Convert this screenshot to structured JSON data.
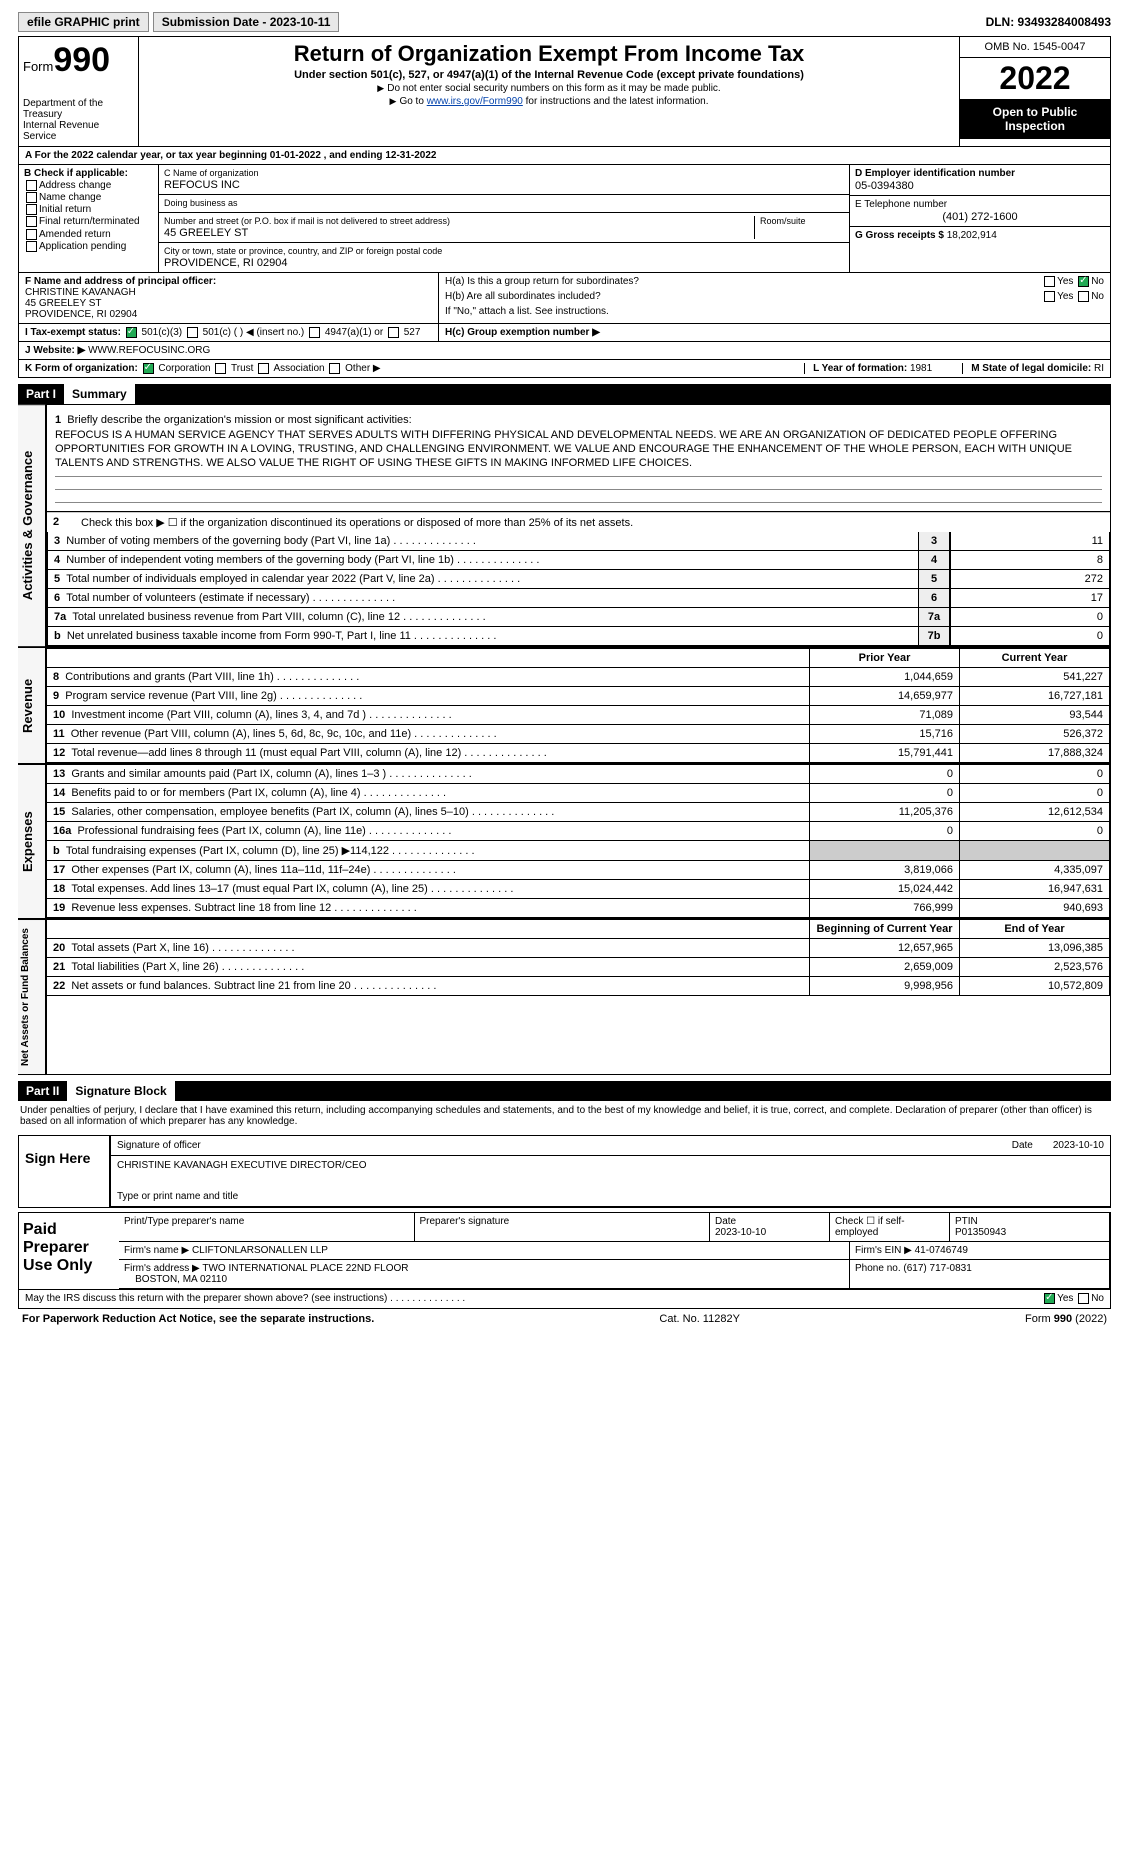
{
  "topbar": {
    "efile": "efile GRAPHIC print",
    "submission": "Submission Date - 2023-10-11",
    "dln": "DLN: 93493284008493"
  },
  "header": {
    "form": "Form",
    "num": "990",
    "dept": "Department of the Treasury",
    "irs": "Internal Revenue Service",
    "title": "Return of Organization Exempt From Income Tax",
    "sub": "Under section 501(c), 527, or 4947(a)(1) of the Internal Revenue Code (except private foundations)",
    "instr1": "Do not enter social security numbers on this form as it may be made public.",
    "instr2_pre": "Go to ",
    "instr2_link": "www.irs.gov/Form990",
    "instr2_post": " for instructions and the latest information.",
    "omb": "OMB No. 1545-0047",
    "year": "2022",
    "open": "Open to Public Inspection"
  },
  "rowA": "A For the 2022 calendar year, or tax year beginning 01-01-2022    , and ending 12-31-2022",
  "boxB": {
    "hdr": "B Check if applicable:",
    "items": [
      "Address change",
      "Name change",
      "Initial return",
      "Final return/terminated",
      "Amended return",
      "Application pending"
    ]
  },
  "boxC": {
    "label": "C Name of organization",
    "name": "REFOCUS INC",
    "dba_label": "Doing business as",
    "dba": "",
    "street_label": "Number and street (or P.O. box if mail is not delivered to street address)",
    "street": "45 GREELEY ST",
    "room_label": "Room/suite",
    "city_label": "City or town, state or province, country, and ZIP or foreign postal code",
    "city": "PROVIDENCE, RI  02904"
  },
  "boxD": {
    "label": "D Employer identification number",
    "val": "05-0394380"
  },
  "boxE": {
    "label": "E Telephone number",
    "val": "(401) 272-1600"
  },
  "boxG": {
    "label": "G Gross receipts $",
    "val": "18,202,914"
  },
  "boxF": {
    "label": "F  Name and address of principal officer:",
    "name": "CHRISTINE KAVANAGH",
    "street": "45 GREELEY ST",
    "city": "PROVIDENCE, RI  02904"
  },
  "boxH": {
    "a": "H(a)  Is this a group return for subordinates?",
    "b": "H(b)  Are all subordinates included?",
    "note": "If \"No,\" attach a list. See instructions.",
    "c": "H(c)  Group exemption number ▶"
  },
  "rowI": {
    "label": "I  Tax-exempt status:",
    "opts": [
      "501(c)(3)",
      "501(c) (  ) ◀ (insert no.)",
      "4947(a)(1) or",
      "527"
    ]
  },
  "rowJ": {
    "label": "J  Website: ▶",
    "val": "WWW.REFOCUSINC.ORG"
  },
  "rowK": {
    "label": "K Form of organization:",
    "opts": [
      "Corporation",
      "Trust",
      "Association",
      "Other ▶"
    ]
  },
  "rowL": {
    "label": "L Year of formation:",
    "val": "1981"
  },
  "rowM": {
    "label": "M State of legal domicile:",
    "val": "RI"
  },
  "part1": {
    "hdr": "Part I",
    "title": "Summary"
  },
  "mission": {
    "num": "1",
    "label": "Briefly describe the organization's mission or most significant activities:",
    "text": "REFOCUS IS A HUMAN SERVICE AGENCY THAT SERVES ADULTS WITH DIFFERING PHYSICAL AND DEVELOPMENTAL NEEDS. WE ARE AN ORGANIZATION OF DEDICATED PEOPLE OFFERING OPPORTUNITIES FOR GROWTH IN A LOVING, TRUSTING, AND CHALLENGING ENVIRONMENT. WE VALUE AND ENCOURAGE THE ENHANCEMENT OF THE WHOLE PERSON, EACH WITH UNIQUE TALENTS AND STRENGTHS. WE ALSO VALUE THE RIGHT OF USING THESE GIFTS IN MAKING INFORMED LIFE CHOICES."
  },
  "gov": {
    "tab": "Activities & Governance",
    "line2": "Check this box ▶ ☐  if the organization discontinued its operations or disposed of more than 25% of its net assets.",
    "rows": [
      {
        "n": "3",
        "t": "Number of voting members of the governing body (Part VI, line 1a)",
        "c": "3",
        "v": "11"
      },
      {
        "n": "4",
        "t": "Number of independent voting members of the governing body (Part VI, line 1b)",
        "c": "4",
        "v": "8"
      },
      {
        "n": "5",
        "t": "Total number of individuals employed in calendar year 2022 (Part V, line 2a)",
        "c": "5",
        "v": "272"
      },
      {
        "n": "6",
        "t": "Total number of volunteers (estimate if necessary)",
        "c": "6",
        "v": "17"
      },
      {
        "n": "7a",
        "t": "Total unrelated business revenue from Part VIII, column (C), line 12",
        "c": "7a",
        "v": "0"
      },
      {
        "n": "b",
        "t": "Net unrelated business taxable income from Form 990-T, Part I, line 11",
        "c": "7b",
        "v": "0"
      }
    ]
  },
  "rev": {
    "tab": "Revenue",
    "hdr_prior": "Prior Year",
    "hdr_cur": "Current Year",
    "rows": [
      {
        "n": "8",
        "t": "Contributions and grants (Part VIII, line 1h)",
        "p": "1,044,659",
        "c": "541,227"
      },
      {
        "n": "9",
        "t": "Program service revenue (Part VIII, line 2g)",
        "p": "14,659,977",
        "c": "16,727,181"
      },
      {
        "n": "10",
        "t": "Investment income (Part VIII, column (A), lines 3, 4, and 7d )",
        "p": "71,089",
        "c": "93,544"
      },
      {
        "n": "11",
        "t": "Other revenue (Part VIII, column (A), lines 5, 6d, 8c, 9c, 10c, and 11e)",
        "p": "15,716",
        "c": "526,372"
      },
      {
        "n": "12",
        "t": "Total revenue—add lines 8 through 11 (must equal Part VIII, column (A), line 12)",
        "p": "15,791,441",
        "c": "17,888,324"
      }
    ]
  },
  "exp": {
    "tab": "Expenses",
    "rows": [
      {
        "n": "13",
        "t": "Grants and similar amounts paid (Part IX, column (A), lines 1–3 )",
        "p": "0",
        "c": "0"
      },
      {
        "n": "14",
        "t": "Benefits paid to or for members (Part IX, column (A), line 4)",
        "p": "0",
        "c": "0"
      },
      {
        "n": "15",
        "t": "Salaries, other compensation, employee benefits (Part IX, column (A), lines 5–10)",
        "p": "11,205,376",
        "c": "12,612,534"
      },
      {
        "n": "16a",
        "t": "Professional fundraising fees (Part IX, column (A), line 11e)",
        "p": "0",
        "c": "0"
      },
      {
        "n": "b",
        "t": "Total fundraising expenses (Part IX, column (D), line 25) ▶114,122",
        "p": "",
        "c": "",
        "shade": true
      },
      {
        "n": "17",
        "t": "Other expenses (Part IX, column (A), lines 11a–11d, 11f–24e)",
        "p": "3,819,066",
        "c": "4,335,097"
      },
      {
        "n": "18",
        "t": "Total expenses. Add lines 13–17 (must equal Part IX, column (A), line 25)",
        "p": "15,024,442",
        "c": "16,947,631"
      },
      {
        "n": "19",
        "t": "Revenue less expenses. Subtract line 18 from line 12",
        "p": "766,999",
        "c": "940,693"
      }
    ]
  },
  "net": {
    "tab": "Net Assets or Fund Balances",
    "hdr_beg": "Beginning of Current Year",
    "hdr_end": "End of Year",
    "rows": [
      {
        "n": "20",
        "t": "Total assets (Part X, line 16)",
        "p": "12,657,965",
        "c": "13,096,385"
      },
      {
        "n": "21",
        "t": "Total liabilities (Part X, line 26)",
        "p": "2,659,009",
        "c": "2,523,576"
      },
      {
        "n": "22",
        "t": "Net assets or fund balances. Subtract line 21 from line 20",
        "p": "9,998,956",
        "c": "10,572,809"
      }
    ]
  },
  "part2": {
    "hdr": "Part II",
    "title": "Signature Block",
    "decl": "Under penalties of perjury, I declare that I have examined this return, including accompanying schedules and statements, and to the best of my knowledge and belief, it is true, correct, and complete. Declaration of preparer (other than officer) is based on all information of which preparer has any knowledge."
  },
  "sign": {
    "label": "Sign Here",
    "sig": "Signature of officer",
    "date": "2023-10-10",
    "name": "CHRISTINE KAVANAGH  EXECUTIVE DIRECTOR/CEO",
    "type": "Type or print name and title"
  },
  "prep": {
    "label": "Paid Preparer Use Only",
    "h1": "Print/Type preparer's name",
    "h2": "Preparer's signature",
    "h3": "Date",
    "h3v": "2023-10-10",
    "h4": "Check ☐ if self-employed",
    "h5": "PTIN",
    "h5v": "P01350943",
    "firm_l": "Firm's name   ▶",
    "firm": "CLIFTONLARSONALLEN LLP",
    "ein_l": "Firm's EIN ▶",
    "ein": "41-0746749",
    "addr_l": "Firm's address ▶",
    "addr": "TWO INTERNATIONAL PLACE 22ND FLOOR",
    "addr2": "BOSTON, MA  02110",
    "phone_l": "Phone no.",
    "phone": "(617) 717-0831"
  },
  "discuss": "May the IRS discuss this return with the preparer shown above? (see instructions)",
  "footer": {
    "pra": "For Paperwork Reduction Act Notice, see the separate instructions.",
    "cat": "Cat. No. 11282Y",
    "form": "Form 990 (2022)"
  }
}
